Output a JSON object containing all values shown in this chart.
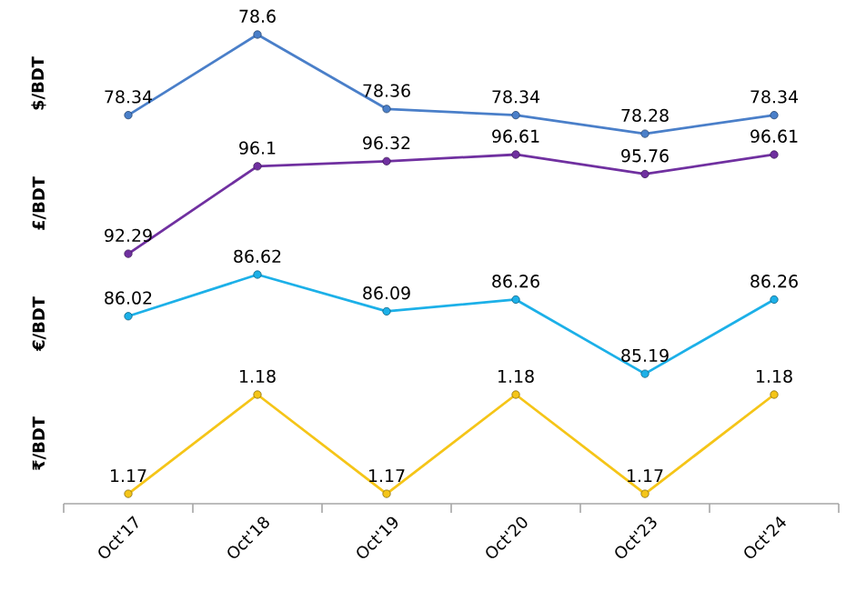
{
  "chart_data": [
    {
      "type": "line",
      "ylabel": "$/BDT",
      "categories": [
        null,
        null,
        null,
        null,
        null,
        null
      ],
      "values": [
        78.34,
        78.6,
        78.36,
        78.34,
        78.28,
        78.34
      ],
      "color": "#4a7fc9",
      "marker": "circle",
      "data_labels": true,
      "tick_labels": false
    },
    {
      "type": "line",
      "ylabel": "£/BDT",
      "categories": [
        null,
        null,
        null,
        null,
        null,
        null
      ],
      "values": [
        92.29,
        96.1,
        96.32,
        96.61,
        95.76,
        96.61
      ],
      "color": "#7030a0",
      "marker": "circle",
      "data_labels": true,
      "tick_labels": false
    },
    {
      "type": "line",
      "ylabel": "€/BDT",
      "categories": [
        null,
        null,
        null,
        null,
        null,
        null
      ],
      "values": [
        86.02,
        86.62,
        86.09,
        86.26,
        85.19,
        86.26
      ],
      "color": "#1cb0e8",
      "marker": "circle",
      "data_labels": true,
      "tick_labels": false
    },
    {
      "type": "line",
      "ylabel": "₹/BDT",
      "categories": [
        "Oct'17",
        "Oct'18",
        "Oct'19",
        "Oct'20",
        "Oct'23",
        "Oct'24"
      ],
      "values": [
        1.17,
        1.18,
        1.17,
        1.18,
        1.17,
        1.18
      ],
      "color": "#f5c518",
      "marker": "circle",
      "data_labels": true,
      "tick_labels": "x"
    }
  ]
}
